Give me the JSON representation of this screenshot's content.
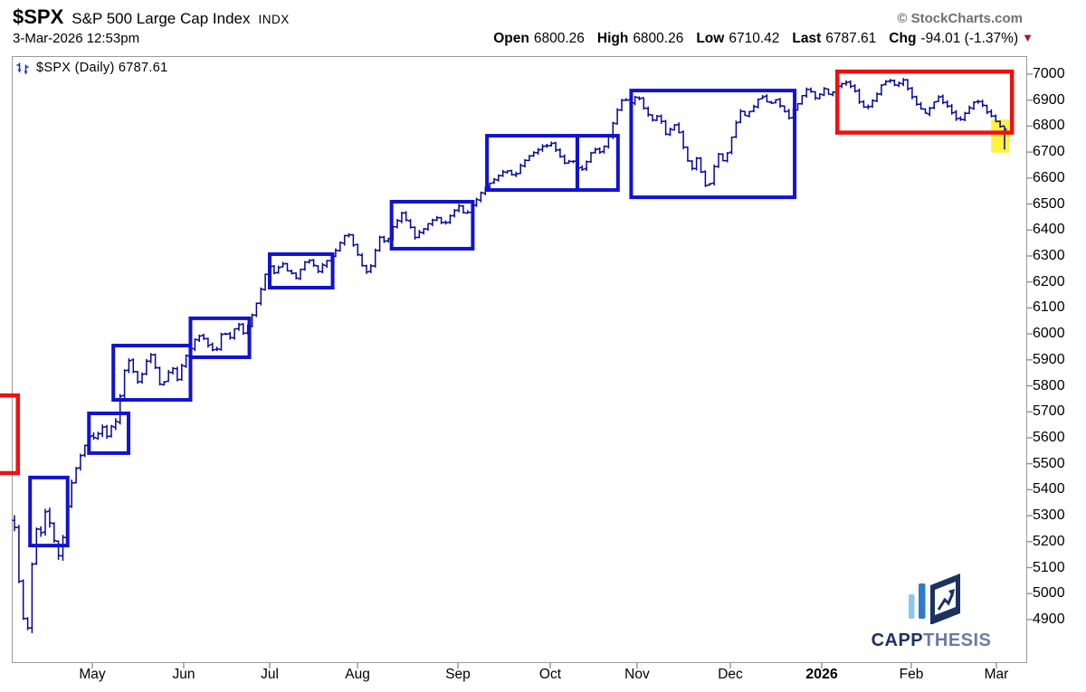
{
  "header": {
    "symbol": "$SPX",
    "title": "S&P 500 Large Cap Index",
    "exchange": "INDX",
    "source": "© StockCharts.com",
    "timestamp": "3-Mar-2026 12:53pm",
    "quote": {
      "open_label": "Open",
      "open": "6800.26",
      "high_label": "High",
      "high": "6800.26",
      "low_label": "Low",
      "low": "6710.42",
      "last_label": "Last",
      "last": "6787.61",
      "chg_label": "Chg",
      "chg": "-94.01 (-1.37%)",
      "direction_icon": "▼",
      "arrow_color": "#9e1b30"
    }
  },
  "legend": {
    "label": "$SPX (Daily) 6787.61"
  },
  "logo": {
    "part1": "CAPP",
    "part2": "THESIS",
    "color1": "#1d3161",
    "color2": "#6b7aa8"
  },
  "chart_data": {
    "type": "ohlc",
    "title": "$SPX (Daily)",
    "ylim": [
      4732.6,
      7069.7
    ],
    "grid": false,
    "bars_count": 226,
    "bar_color": "#060696",
    "box_color": "#1212d0",
    "red_box_color": "#ee1010",
    "highlight_color": "#fdf23c",
    "frame_color": "#9a9a9a",
    "tick_color": "#8a8a8a",
    "y_axis": {
      "ticks": [
        7000,
        6900,
        6800,
        6700,
        6600,
        6500,
        6400,
        6300,
        6200,
        6100,
        6000,
        5900,
        5800,
        5700,
        5600,
        5500,
        5400,
        5300,
        5200,
        5100,
        5000,
        4900
      ]
    },
    "x_axis": {
      "ticks": [
        {
          "label": "May",
          "f": 0.0793
        },
        {
          "label": "Jun",
          "f": 0.1693
        },
        {
          "label": "Jul",
          "f": 0.254
        },
        {
          "label": "Aug",
          "f": 0.3405
        },
        {
          "label": "Sep",
          "f": 0.4394
        },
        {
          "label": "Oct",
          "f": 0.5303
        },
        {
          "label": "Nov",
          "f": 0.6158
        },
        {
          "label": "Dec",
          "f": 0.7077
        },
        {
          "label": "2026",
          "f": 0.7977,
          "bold": true
        },
        {
          "label": "Feb",
          "f": 0.8859
        },
        {
          "label": "Mar",
          "f": 0.9697
        }
      ]
    },
    "last_bar": {
      "open": 6800.26,
      "high": 6800.26,
      "low": 6710.42,
      "close": 6787.61
    },
    "price_path": [
      [
        0,
        5260
      ],
      [
        0.005,
        5020
      ],
      [
        0.009,
        4900
      ],
      [
        0.013,
        4845
      ],
      [
        0.017,
        5080
      ],
      [
        0.021,
        5260
      ],
      [
        0.026,
        5225
      ],
      [
        0.031,
        5320
      ],
      [
        0.037,
        5255
      ],
      [
        0.042,
        5165
      ],
      [
        0.046,
        5135
      ],
      [
        0.052,
        5305
      ],
      [
        0.057,
        5420
      ],
      [
        0.063,
        5495
      ],
      [
        0.07,
        5560
      ],
      [
        0.077,
        5615
      ],
      [
        0.082,
        5590
      ],
      [
        0.088,
        5645
      ],
      [
        0.094,
        5600
      ],
      [
        0.099,
        5655
      ],
      [
        0.104,
        5675
      ],
      [
        0.108,
        5800
      ],
      [
        0.111,
        5855
      ],
      [
        0.115,
        5900
      ],
      [
        0.121,
        5850
      ],
      [
        0.126,
        5805
      ],
      [
        0.132,
        5880
      ],
      [
        0.137,
        5930
      ],
      [
        0.143,
        5865
      ],
      [
        0.148,
        5790
      ],
      [
        0.154,
        5845
      ],
      [
        0.159,
        5880
      ],
      [
        0.165,
        5820
      ],
      [
        0.17,
        5890
      ],
      [
        0.176,
        5935
      ],
      [
        0.181,
        5970
      ],
      [
        0.188,
        6000
      ],
      [
        0.196,
        5955
      ],
      [
        0.203,
        5925
      ],
      [
        0.21,
        6010
      ],
      [
        0.217,
        5985
      ],
      [
        0.225,
        6040
      ],
      [
        0.232,
        6000
      ],
      [
        0.238,
        6050
      ],
      [
        0.245,
        6120
      ],
      [
        0.252,
        6215
      ],
      [
        0.258,
        6260
      ],
      [
        0.263,
        6230
      ],
      [
        0.27,
        6270
      ],
      [
        0.277,
        6240
      ],
      [
        0.285,
        6210
      ],
      [
        0.292,
        6270
      ],
      [
        0.299,
        6290
      ],
      [
        0.307,
        6235
      ],
      [
        0.314,
        6280
      ],
      [
        0.321,
        6300
      ],
      [
        0.329,
        6350
      ],
      [
        0.336,
        6390
      ],
      [
        0.343,
        6340
      ],
      [
        0.35,
        6270
      ],
      [
        0.358,
        6230
      ],
      [
        0.363,
        6300
      ],
      [
        0.369,
        6375
      ],
      [
        0.376,
        6350
      ],
      [
        0.383,
        6420
      ],
      [
        0.391,
        6465
      ],
      [
        0.398,
        6420
      ],
      [
        0.405,
        6370
      ],
      [
        0.412,
        6400
      ],
      [
        0.42,
        6430
      ],
      [
        0.427,
        6450
      ],
      [
        0.434,
        6420
      ],
      [
        0.442,
        6465
      ],
      [
        0.449,
        6490
      ],
      [
        0.456,
        6450
      ],
      [
        0.463,
        6500
      ],
      [
        0.471,
        6545
      ],
      [
        0.478,
        6580
      ],
      [
        0.487,
        6600
      ],
      [
        0.496,
        6630
      ],
      [
        0.505,
        6610
      ],
      [
        0.514,
        6665
      ],
      [
        0.523,
        6700
      ],
      [
        0.532,
        6720
      ],
      [
        0.542,
        6730
      ],
      [
        0.549,
        6700
      ],
      [
        0.556,
        6655
      ],
      [
        0.563,
        6680
      ],
      [
        0.571,
        6620
      ],
      [
        0.578,
        6660
      ],
      [
        0.585,
        6715
      ],
      [
        0.592,
        6695
      ],
      [
        0.6,
        6755
      ],
      [
        0.607,
        6840
      ],
      [
        0.614,
        6905
      ],
      [
        0.622,
        6890
      ],
      [
        0.629,
        6925
      ],
      [
        0.636,
        6870
      ],
      [
        0.644,
        6820
      ],
      [
        0.651,
        6850
      ],
      [
        0.658,
        6765
      ],
      [
        0.665,
        6810
      ],
      [
        0.672,
        6770
      ],
      [
        0.678,
        6680
      ],
      [
        0.684,
        6630
      ],
      [
        0.689,
        6675
      ],
      [
        0.695,
        6600
      ],
      [
        0.7,
        6540
      ],
      [
        0.706,
        6640
      ],
      [
        0.711,
        6690
      ],
      [
        0.717,
        6665
      ],
      [
        0.722,
        6720
      ],
      [
        0.728,
        6800
      ],
      [
        0.733,
        6855
      ],
      [
        0.74,
        6840
      ],
      [
        0.747,
        6880
      ],
      [
        0.755,
        6915
      ],
      [
        0.762,
        6880
      ],
      [
        0.769,
        6905
      ],
      [
        0.777,
        6855
      ],
      [
        0.782,
        6830
      ],
      [
        0.788,
        6870
      ],
      [
        0.795,
        6915
      ],
      [
        0.802,
        6945
      ],
      [
        0.809,
        6905
      ],
      [
        0.817,
        6945
      ],
      [
        0.824,
        6915
      ],
      [
        0.831,
        6950
      ],
      [
        0.838,
        6975
      ],
      [
        0.846,
        6950
      ],
      [
        0.853,
        6900
      ],
      [
        0.86,
        6865
      ],
      [
        0.868,
        6905
      ],
      [
        0.875,
        6955
      ],
      [
        0.882,
        6985
      ],
      [
        0.89,
        6955
      ],
      [
        0.897,
        6985
      ],
      [
        0.904,
        6935
      ],
      [
        0.911,
        6885
      ],
      [
        0.919,
        6850
      ],
      [
        0.926,
        6875
      ],
      [
        0.933,
        6915
      ],
      [
        0.94,
        6885
      ],
      [
        0.947,
        6850
      ],
      [
        0.954,
        6820
      ],
      [
        0.961,
        6855
      ],
      [
        0.968,
        6890
      ],
      [
        0.975,
        6895
      ],
      [
        0.982,
        6855
      ],
      [
        0.989,
        6830
      ],
      [
        0.995,
        6800
      ],
      [
        1,
        6787.61
      ]
    ],
    "annotations": [
      {
        "shape": "highlight",
        "color": "#fdf23c",
        "f0": 0.9645,
        "f1": 0.9825,
        "p0": 6698,
        "p1": 6825,
        "name": "last-bar-highlight"
      },
      {
        "shape": "box",
        "color": "#ee1010",
        "f0": -0.02,
        "f1": 0.006,
        "p0": 5464,
        "p1": 5763,
        "name": "red-box-left"
      },
      {
        "shape": "box",
        "color": "#1212d0",
        "f0": 0.018,
        "f1": 0.055,
        "p0": 5185,
        "p1": 5447,
        "name": "consolidation-box-1"
      },
      {
        "shape": "box",
        "color": "#1212d0",
        "f0": 0.076,
        "f1": 0.115,
        "p0": 5541,
        "p1": 5694,
        "name": "consolidation-box-2"
      },
      {
        "shape": "box",
        "color": "#1212d0",
        "f0": 0.1,
        "f1": 0.176,
        "p0": 5746,
        "p1": 5955,
        "name": "consolidation-box-3"
      },
      {
        "shape": "box",
        "color": "#1212d0",
        "f0": 0.176,
        "f1": 0.234,
        "p0": 5910,
        "p1": 6060,
        "name": "consolidation-box-4"
      },
      {
        "shape": "box",
        "color": "#1212d0",
        "f0": 0.254,
        "f1": 0.316,
        "p0": 6178,
        "p1": 6307,
        "name": "consolidation-box-5"
      },
      {
        "shape": "box",
        "color": "#1212d0",
        "f0": 0.374,
        "f1": 0.454,
        "p0": 6328,
        "p1": 6509,
        "name": "consolidation-box-6"
      },
      {
        "shape": "box",
        "color": "#1212d0",
        "f0": 0.468,
        "f1": 0.557,
        "p0": 6554,
        "p1": 6763,
        "name": "consolidation-box-7a"
      },
      {
        "shape": "box",
        "color": "#1212d0",
        "f0": 0.557,
        "f1": 0.597,
        "p0": 6554,
        "p1": 6763,
        "name": "consolidation-box-7b"
      },
      {
        "shape": "box",
        "color": "#1212d0",
        "f0": 0.61,
        "f1": 0.771,
        "p0": 6526,
        "p1": 6937,
        "name": "consolidation-box-8"
      },
      {
        "shape": "box",
        "color": "#ee1010",
        "f0": 0.813,
        "f1": 0.985,
        "p0": 6775,
        "p1": 7010,
        "name": "red-box-right"
      }
    ]
  }
}
